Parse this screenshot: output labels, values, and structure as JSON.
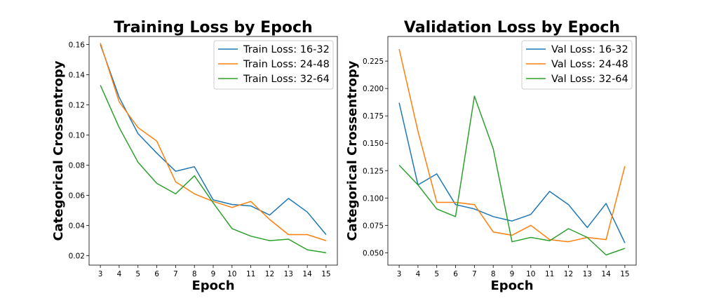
{
  "chart_data": [
    {
      "type": "line",
      "title": "Training Loss by Epoch",
      "xlabel": "Epoch",
      "ylabel": "Categorical Crossentropy",
      "x": [
        3,
        4,
        5,
        6,
        7,
        8,
        9,
        10,
        11,
        12,
        13,
        14,
        15
      ],
      "xlim": [
        2.4,
        15.6
      ],
      "ylim": [
        0.0138,
        0.1653
      ],
      "yticks": [
        0.02,
        0.04,
        0.06,
        0.08,
        0.1,
        0.12,
        0.14,
        0.16
      ],
      "ytick_labels": [
        "0.02",
        "0.04",
        "0.06",
        "0.08",
        "0.10",
        "0.12",
        "0.14",
        "0.16"
      ],
      "legend": "top-right",
      "grid": false,
      "series": [
        {
          "name": "Train Loss: 16-32",
          "color": "#1f77b4",
          "values": [
            0.16,
            0.125,
            0.101,
            0.088,
            0.076,
            0.079,
            0.057,
            0.054,
            0.053,
            0.047,
            0.058,
            0.049,
            0.034
          ]
        },
        {
          "name": "Train Loss: 24-48",
          "color": "#ff7f0e",
          "values": [
            0.161,
            0.122,
            0.105,
            0.096,
            0.069,
            0.061,
            0.056,
            0.052,
            0.056,
            0.044,
            0.034,
            0.034,
            0.03
          ]
        },
        {
          "name": "Train Loss: 32-64",
          "color": "#2ca02c",
          "values": [
            0.133,
            0.105,
            0.082,
            0.068,
            0.061,
            0.073,
            0.055,
            0.038,
            0.033,
            0.03,
            0.031,
            0.024,
            0.022
          ]
        }
      ]
    },
    {
      "type": "line",
      "title": "Validation Loss by Epoch",
      "xlabel": "Epoch",
      "ylabel": "Categorical Crossentropy",
      "x": [
        3,
        4,
        5,
        6,
        7,
        8,
        9,
        10,
        11,
        12,
        13,
        14,
        15
      ],
      "xlim": [
        2.4,
        15.6
      ],
      "ylim": [
        0.0387,
        0.2475
      ],
      "yticks": [
        0.05,
        0.075,
        0.1,
        0.125,
        0.15,
        0.175,
        0.2,
        0.225
      ],
      "ytick_labels": [
        "0.050",
        "0.075",
        "0.100",
        "0.125",
        "0.150",
        "0.175",
        "0.200",
        "0.225"
      ],
      "legend": "top-right",
      "grid": false,
      "series": [
        {
          "name": "Val Loss: 16-32",
          "color": "#1f77b4",
          "values": [
            0.187,
            0.112,
            0.122,
            0.094,
            0.09,
            0.083,
            0.079,
            0.085,
            0.106,
            0.094,
            0.073,
            0.095,
            0.059
          ]
        },
        {
          "name": "Val Loss: 24-48",
          "color": "#ff7f0e",
          "values": [
            0.236,
            0.161,
            0.096,
            0.096,
            0.094,
            0.069,
            0.066,
            0.075,
            0.062,
            0.06,
            0.064,
            0.062,
            0.129
          ]
        },
        {
          "name": "Val Loss: 32-64",
          "color": "#2ca02c",
          "values": [
            0.13,
            0.112,
            0.09,
            0.083,
            0.193,
            0.145,
            0.06,
            0.064,
            0.061,
            0.072,
            0.064,
            0.048,
            0.054
          ]
        }
      ]
    }
  ]
}
